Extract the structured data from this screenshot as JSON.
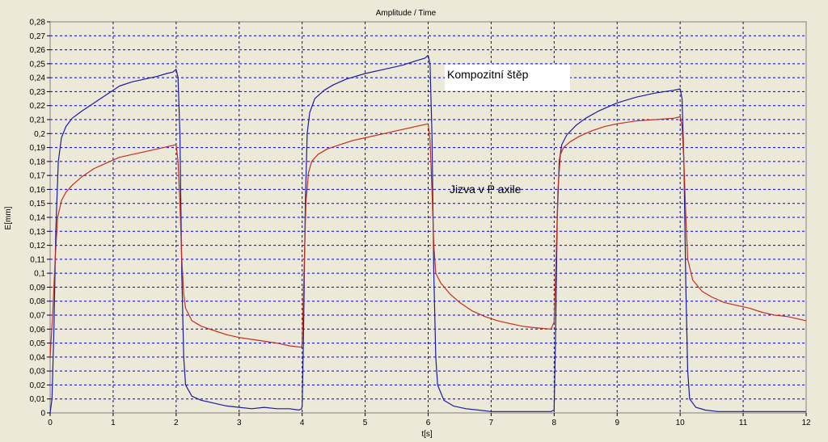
{
  "chart_data": {
    "type": "line",
    "title": "Amplitude / Time",
    "xlabel": "t[s]",
    "ylabel": "E[mm]",
    "xlim": [
      0,
      12
    ],
    "ylim": [
      0,
      0.28
    ],
    "x_ticks": [
      "0",
      "1",
      "2",
      "3",
      "4",
      "5",
      "6",
      "7",
      "8",
      "9",
      "10",
      "11",
      "12"
    ],
    "y_ticks": [
      "0",
      "0,01",
      "0,02",
      "0,03",
      "0,04",
      "0,05",
      "0,06",
      "0,07",
      "0,08",
      "0,09",
      "0,1",
      "0,11",
      "0,12",
      "0,13",
      "0,14",
      "0,15",
      "0,16",
      "0,17",
      "0,18",
      "0,19",
      "0,2",
      "0,21",
      "0,22",
      "0,23",
      "0,24",
      "0,25",
      "0,26",
      "0,27",
      "0,28"
    ],
    "grid": true,
    "colors": {
      "grid": "#0000c8",
      "plot_bg": "#ece9d8",
      "annotation_bg": "#ffffff"
    },
    "series": [
      {
        "color": "#1c1ca0",
        "points": [
          [
            0,
            0
          ],
          [
            0.03,
            0.01
          ],
          [
            0.06,
            0.06
          ],
          [
            0.09,
            0.13
          ],
          [
            0.13,
            0.18
          ],
          [
            0.18,
            0.197
          ],
          [
            0.25,
            0.205
          ],
          [
            0.35,
            0.211
          ],
          [
            0.5,
            0.216
          ],
          [
            0.7,
            0.222
          ],
          [
            0.9,
            0.228
          ],
          [
            1.0,
            0.231
          ],
          [
            1.1,
            0.234
          ],
          [
            1.3,
            0.237
          ],
          [
            1.5,
            0.239
          ],
          [
            1.7,
            0.241
          ],
          [
            1.85,
            0.243
          ],
          [
            1.95,
            0.244
          ],
          [
            2.0,
            0.246
          ],
          [
            2.03,
            0.24
          ],
          [
            2.06,
            0.2
          ],
          [
            2.09,
            0.1
          ],
          [
            2.12,
            0.04
          ],
          [
            2.15,
            0.02
          ],
          [
            2.25,
            0.012
          ],
          [
            2.4,
            0.009
          ],
          [
            2.6,
            0.007
          ],
          [
            2.8,
            0.005
          ],
          [
            3.0,
            0.004
          ],
          [
            3.2,
            0.003
          ],
          [
            3.4,
            0.004
          ],
          [
            3.6,
            0.003
          ],
          [
            3.8,
            0.003
          ],
          [
            3.95,
            0.002
          ],
          [
            3.99,
            0.003
          ],
          [
            4.0,
            0.005
          ],
          [
            4.02,
            0.05
          ],
          [
            4.05,
            0.15
          ],
          [
            4.08,
            0.2
          ],
          [
            4.12,
            0.215
          ],
          [
            4.2,
            0.225
          ],
          [
            4.35,
            0.231
          ],
          [
            4.5,
            0.235
          ],
          [
            4.7,
            0.239
          ],
          [
            5.0,
            0.243
          ],
          [
            5.3,
            0.246
          ],
          [
            5.6,
            0.249
          ],
          [
            5.8,
            0.252
          ],
          [
            5.95,
            0.254
          ],
          [
            6.0,
            0.256
          ],
          [
            6.03,
            0.25
          ],
          [
            6.06,
            0.2
          ],
          [
            6.09,
            0.1
          ],
          [
            6.12,
            0.04
          ],
          [
            6.15,
            0.02
          ],
          [
            6.25,
            0.009
          ],
          [
            6.4,
            0.005
          ],
          [
            6.6,
            0.003
          ],
          [
            6.8,
            0.002
          ],
          [
            7.0,
            0.001
          ],
          [
            7.2,
            0.001
          ],
          [
            7.4,
            0.001
          ],
          [
            7.6,
            0.001
          ],
          [
            7.95,
            0.001
          ],
          [
            8.0,
            0.002
          ],
          [
            8.02,
            0.05
          ],
          [
            8.05,
            0.14
          ],
          [
            8.08,
            0.18
          ],
          [
            8.12,
            0.192
          ],
          [
            8.2,
            0.199
          ],
          [
            8.35,
            0.206
          ],
          [
            8.5,
            0.211
          ],
          [
            8.7,
            0.216
          ],
          [
            9.0,
            0.222
          ],
          [
            9.3,
            0.226
          ],
          [
            9.6,
            0.229
          ],
          [
            9.9,
            0.231
          ],
          [
            10.0,
            0.232
          ],
          [
            10.03,
            0.225
          ],
          [
            10.06,
            0.18
          ],
          [
            10.09,
            0.09
          ],
          [
            10.12,
            0.03
          ],
          [
            10.15,
            0.01
          ],
          [
            10.25,
            0.004
          ],
          [
            10.4,
            0.002
          ],
          [
            10.6,
            0.001
          ],
          [
            11.0,
            0.001
          ],
          [
            11.5,
            0.001
          ],
          [
            12.0,
            0.001
          ]
        ]
      },
      {
        "color": "#c03020",
        "points": [
          [
            0,
            0.04
          ],
          [
            0.04,
            0.07
          ],
          [
            0.08,
            0.11
          ],
          [
            0.12,
            0.14
          ],
          [
            0.18,
            0.152
          ],
          [
            0.25,
            0.158
          ],
          [
            0.35,
            0.163
          ],
          [
            0.5,
            0.169
          ],
          [
            0.7,
            0.175
          ],
          [
            0.9,
            0.179
          ],
          [
            1.1,
            0.183
          ],
          [
            1.3,
            0.185
          ],
          [
            1.5,
            0.187
          ],
          [
            1.7,
            0.189
          ],
          [
            1.9,
            0.191
          ],
          [
            2.0,
            0.192
          ],
          [
            2.03,
            0.18
          ],
          [
            2.06,
            0.15
          ],
          [
            2.09,
            0.11
          ],
          [
            2.12,
            0.085
          ],
          [
            2.15,
            0.075
          ],
          [
            2.25,
            0.066
          ],
          [
            2.4,
            0.062
          ],
          [
            2.6,
            0.059
          ],
          [
            2.8,
            0.056
          ],
          [
            3.0,
            0.054
          ],
          [
            3.3,
            0.052
          ],
          [
            3.6,
            0.05
          ],
          [
            3.8,
            0.048
          ],
          [
            3.99,
            0.047
          ],
          [
            4.0,
            0.05
          ],
          [
            4.03,
            0.1
          ],
          [
            4.06,
            0.15
          ],
          [
            4.1,
            0.172
          ],
          [
            4.15,
            0.18
          ],
          [
            4.25,
            0.185
          ],
          [
            4.4,
            0.189
          ],
          [
            4.6,
            0.192
          ],
          [
            4.8,
            0.195
          ],
          [
            5.0,
            0.197
          ],
          [
            5.3,
            0.2
          ],
          [
            5.6,
            0.203
          ],
          [
            5.8,
            0.205
          ],
          [
            6.0,
            0.207
          ],
          [
            6.03,
            0.195
          ],
          [
            6.06,
            0.16
          ],
          [
            6.09,
            0.12
          ],
          [
            6.12,
            0.1
          ],
          [
            6.2,
            0.093
          ],
          [
            6.35,
            0.085
          ],
          [
            6.5,
            0.079
          ],
          [
            6.7,
            0.073
          ],
          [
            6.9,
            0.069
          ],
          [
            7.1,
            0.066
          ],
          [
            7.3,
            0.064
          ],
          [
            7.5,
            0.062
          ],
          [
            7.7,
            0.061
          ],
          [
            7.95,
            0.06
          ],
          [
            8.0,
            0.065
          ],
          [
            8.03,
            0.11
          ],
          [
            8.06,
            0.16
          ],
          [
            8.1,
            0.185
          ],
          [
            8.15,
            0.19
          ],
          [
            8.25,
            0.194
          ],
          [
            8.4,
            0.198
          ],
          [
            8.6,
            0.202
          ],
          [
            8.8,
            0.205
          ],
          [
            9.0,
            0.207
          ],
          [
            9.3,
            0.209
          ],
          [
            9.6,
            0.21
          ],
          [
            9.9,
            0.211
          ],
          [
            10.0,
            0.212
          ],
          [
            10.03,
            0.205
          ],
          [
            10.06,
            0.18
          ],
          [
            10.09,
            0.14
          ],
          [
            10.12,
            0.11
          ],
          [
            10.2,
            0.095
          ],
          [
            10.35,
            0.087
          ],
          [
            10.5,
            0.083
          ],
          [
            10.7,
            0.079
          ],
          [
            10.9,
            0.077
          ],
          [
            11.1,
            0.075
          ],
          [
            11.3,
            0.072
          ],
          [
            11.5,
            0.07
          ],
          [
            11.7,
            0.069
          ],
          [
            11.9,
            0.067
          ],
          [
            12.0,
            0.066
          ]
        ]
      }
    ],
    "annotations": [
      {
        "text": "Kompozitní štěp"
      },
      {
        "text": "Jizva v P axile"
      }
    ]
  }
}
